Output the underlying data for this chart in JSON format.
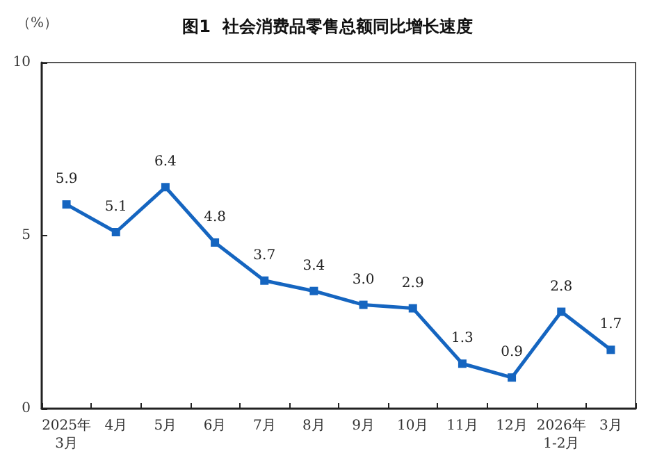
{
  "chart_data": {
    "type": "line",
    "title": "图1  社会消费品零售总额同比增长速度",
    "ylabel": "（%）",
    "categories": [
      "2025年\n3月",
      "4月",
      "5月",
      "6月",
      "7月",
      "8月",
      "9月",
      "10月",
      "11月",
      "12月",
      "2026年\n1-2月",
      "3月"
    ],
    "series": [
      {
        "color": "#1565c0",
        "values": [
          5.9,
          5.1,
          6.4,
          4.8,
          3.7,
          3.4,
          3.0,
          2.9,
          1.3,
          0.9,
          2.8,
          1.7
        ],
        "value_labels": [
          "5.9",
          "5.1",
          "6.4",
          "4.8",
          "3.7",
          "3.4",
          "3.0",
          "2.9",
          "1.3",
          "0.9",
          "2.8",
          "1.7"
        ]
      }
    ],
    "ylim": [
      0,
      10
    ],
    "yticks": [
      0,
      5,
      10
    ],
    "grid": false,
    "marker": "square",
    "line_style": "solid"
  }
}
